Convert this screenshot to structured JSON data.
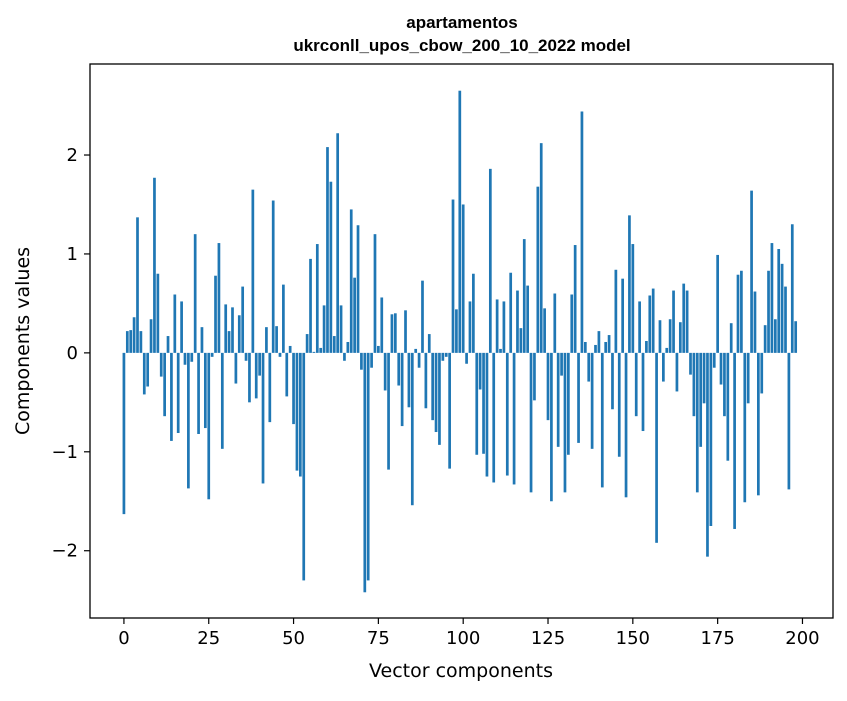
{
  "chart_data": {
    "type": "bar",
    "title": "apartamentos",
    "subtitle": "ukrconll_upos_cbow_200_10_2022 model",
    "xlabel": "Vector components",
    "ylabel": "Components values",
    "xlim": [
      -10,
      209
    ],
    "ylim": [
      -2.68,
      2.92
    ],
    "xticks": [
      0,
      25,
      50,
      75,
      100,
      125,
      150,
      175,
      200
    ],
    "xtick_labels": [
      "0",
      "25",
      "50",
      "75",
      "100",
      "125",
      "150",
      "175",
      "200"
    ],
    "yticks": [
      -2,
      -1,
      0,
      1,
      2
    ],
    "ytick_labels": [
      "−2",
      "−1",
      "0",
      "1",
      "2"
    ],
    "grid": false,
    "bar_color": "#1f77b4",
    "values": [
      -1.63,
      0.22,
      0.23,
      0.36,
      1.37,
      0.22,
      -0.42,
      -0.34,
      0.34,
      1.77,
      0.8,
      -0.24,
      -0.64,
      0.17,
      -0.89,
      0.59,
      -0.81,
      0.52,
      -0.12,
      -1.37,
      -0.09,
      1.2,
      -0.82,
      0.26,
      -0.76,
      -1.48,
      -0.04,
      0.78,
      1.11,
      -0.97,
      0.49,
      0.22,
      0.46,
      -0.31,
      0.38,
      0.67,
      -0.08,
      -0.5,
      1.65,
      -0.46,
      -0.23,
      -1.32,
      0.26,
      -0.7,
      1.54,
      0.27,
      -0.04,
      0.69,
      -0.44,
      0.07,
      -0.72,
      -1.19,
      -1.25,
      -2.3,
      0.19,
      0.95,
      0.01,
      1.1,
      0.05,
      0.48,
      2.08,
      1.73,
      0.17,
      2.22,
      0.48,
      -0.08,
      0.11,
      1.45,
      0.76,
      1.29,
      -0.17,
      -2.42,
      -2.3,
      -0.15,
      1.2,
      0.07,
      0.56,
      -0.38,
      -1.18,
      0.39,
      0.4,
      -0.33,
      -0.74,
      0.43,
      -0.55,
      -1.54,
      0.04,
      -0.15,
      0.73,
      -0.56,
      0.19,
      -0.68,
      -0.8,
      -0.93,
      -0.08,
      -0.04,
      -1.17,
      1.55,
      0.44,
      2.65,
      1.5,
      -0.11,
      0.52,
      0.8,
      -1.03,
      -0.37,
      -1.02,
      -1.25,
      1.86,
      -1.31,
      0.54,
      0.04,
      0.52,
      -1.24,
      0.81,
      -1.33,
      0.63,
      0.25,
      1.15,
      0.68,
      -1.41,
      -0.48,
      1.68,
      2.12,
      0.45,
      -0.68,
      -1.5,
      0.6,
      -0.95,
      -0.23,
      -1.41,
      -1.03,
      0.59,
      1.09,
      -0.91,
      2.44,
      0.11,
      -0.29,
      -0.97,
      0.08,
      0.22,
      -1.36,
      0.11,
      0.18,
      -0.57,
      0.84,
      -1.05,
      0.75,
      -1.46,
      1.39,
      1.1,
      -0.64,
      0.52,
      -0.79,
      0.12,
      0.58,
      0.65,
      -1.92,
      0.33,
      -0.29,
      0.05,
      0.34,
      0.63,
      -0.39,
      0.31,
      0.7,
      0.63,
      -0.22,
      -0.64,
      -1.41,
      -0.95,
      -0.51,
      -2.06,
      -1.75,
      -0.15,
      0.99,
      -0.32,
      -0.64,
      -1.09,
      0.3,
      -1.78,
      0.79,
      0.83,
      -1.51,
      -0.51,
      1.64,
      0.62,
      -1.44,
      -0.41,
      0.28,
      0.83,
      1.11,
      0.34,
      1.05,
      0.9,
      0.67,
      -1.38,
      1.3,
      0.32
    ]
  }
}
